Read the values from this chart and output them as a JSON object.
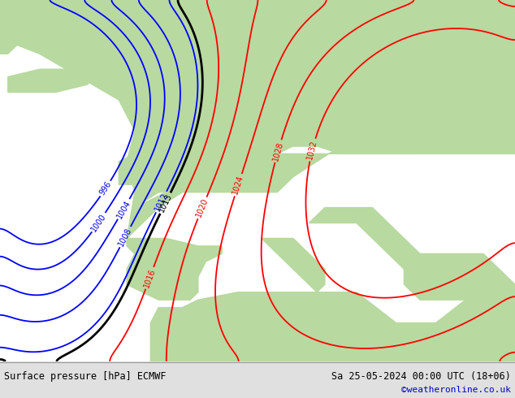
{
  "title_left": "Surface pressure [hPa] ECMWF",
  "title_right": "Sa 25-05-2024 00:00 UTC (18+06)",
  "credit": "©weatheronline.co.uk",
  "credit_color": "#0000cc",
  "bg_land": "#b8d9a0",
  "bg_ocean": "#b0ccd8",
  "bottom_bar_color": "#e0e0e0",
  "fig_width": 6.34,
  "fig_height": 4.9,
  "dpi": 100
}
